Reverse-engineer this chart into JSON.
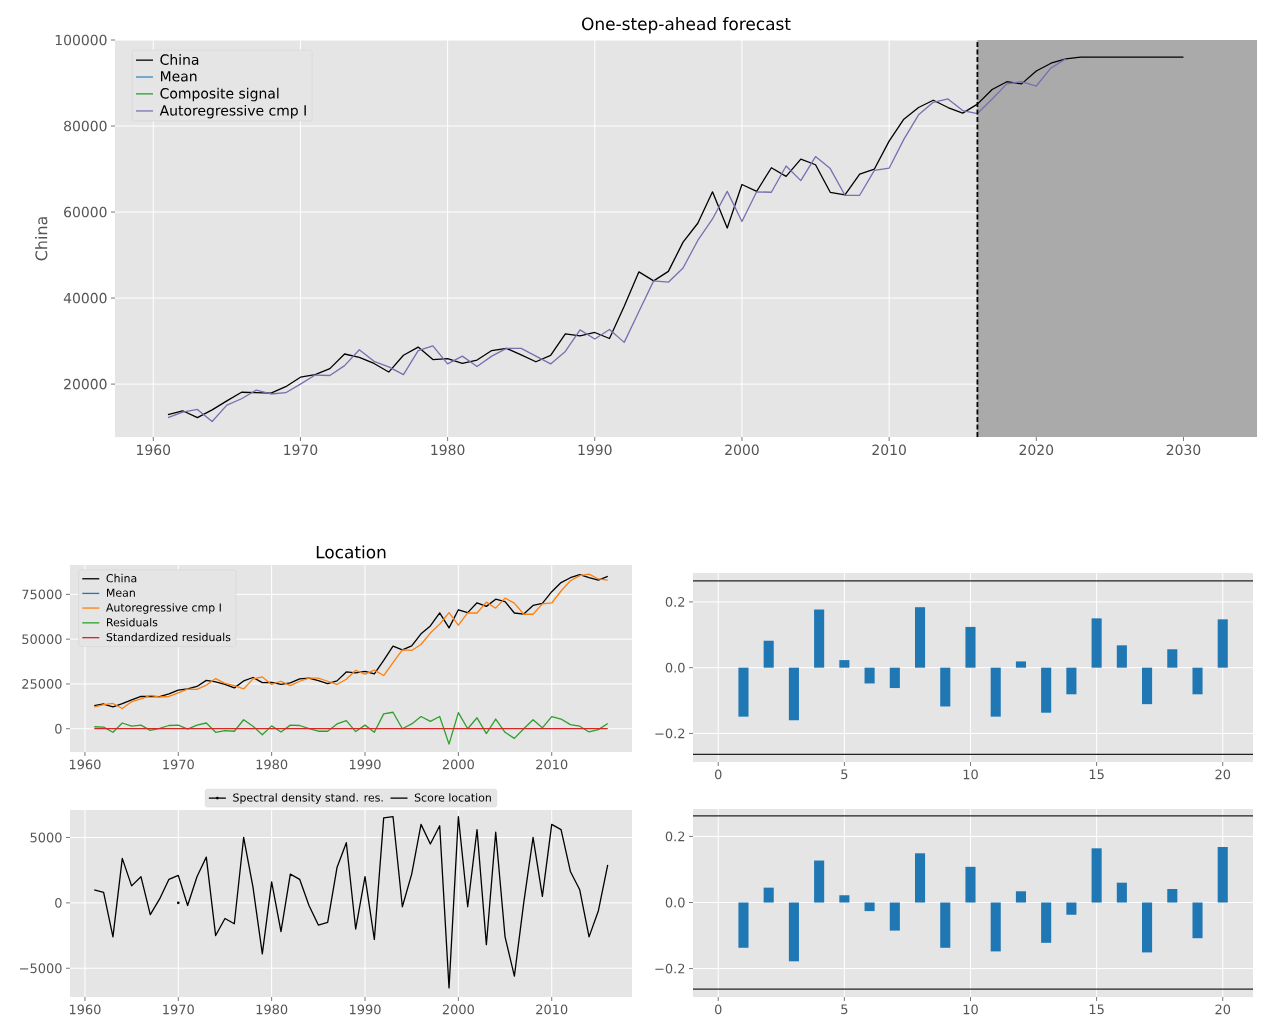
{
  "chart_data": [
    {
      "type": "line",
      "title": "One-step-ahead forecast",
      "ylabel": "China",
      "series": [
        {
          "name": "China",
          "color": "#000000",
          "x": [
            1961,
            1962,
            1963,
            1964,
            1965,
            1966,
            1967,
            1968,
            1969,
            1970,
            1971,
            1972,
            1973,
            1974,
            1975,
            1976,
            1977,
            1978,
            1979,
            1980,
            1981,
            1982,
            1983,
            1984,
            1985,
            1986,
            1987,
            1988,
            1989,
            1990,
            1991,
            1992,
            1993,
            1994,
            1995,
            1996,
            1997,
            1998,
            1999,
            2000,
            2001,
            2002,
            2003,
            2004,
            2005,
            2006,
            2007,
            2008,
            2009,
            2010,
            2011,
            2012,
            2013,
            2014,
            2015,
            2016,
            2017,
            2018,
            2019,
            2020,
            2021,
            2022,
            2023,
            2024,
            2025,
            2026,
            2027,
            2028,
            2029,
            2030
          ],
          "values": [
            12900,
            13800,
            12200,
            14000,
            16100,
            18100,
            18000,
            17900,
            19400,
            21600,
            22200,
            23600,
            27000,
            26200,
            24800,
            22800,
            26700,
            28600,
            25700,
            25900,
            24800,
            25600,
            27800,
            28300,
            26800,
            25200,
            26700,
            31700,
            31200,
            32000,
            30600,
            38100,
            46100,
            44000,
            46200,
            53000,
            57400,
            64700,
            56300,
            66400,
            64800,
            70300,
            68300,
            72300,
            71000,
            64600,
            64000,
            68800,
            70000,
            76500,
            81600,
            84300,
            86000,
            84300,
            83000,
            85100,
            88500,
            90300,
            89800,
            92800,
            94600,
            95600,
            96000,
            96000,
            96000,
            96000,
            96000,
            96000,
            96000,
            96000
          ]
        },
        {
          "name": "Mean",
          "color": "#348abd"
        },
        {
          "name": "Composite signal",
          "color": "#2ca02c"
        },
        {
          "name": "Autoregressive cmp I",
          "color": "#7a6eb0",
          "x": [
            1961,
            1962,
            1963,
            1964,
            1965,
            1966,
            1967,
            1968,
            1969,
            1970,
            1971,
            1972,
            1973,
            1974,
            1975,
            1976,
            1977,
            1978,
            1979,
            1980,
            1981,
            1982,
            1983,
            1984,
            1985,
            1986,
            1987,
            1988,
            1989,
            1990,
            1991,
            1992,
            1993,
            1994,
            1995,
            1996,
            1997,
            1998,
            1999,
            2000,
            2001,
            2002,
            2003,
            2004,
            2005,
            2006,
            2007,
            2008,
            2009,
            2010,
            2011,
            2012,
            2013,
            2014,
            2015,
            2016,
            2017,
            2018,
            2019,
            2020,
            2021,
            2022
          ],
          "values": [
            12200,
            13500,
            14100,
            11300,
            15100,
            16600,
            18600,
            17700,
            18000,
            20000,
            22100,
            22000,
            24300,
            28000,
            25300,
            24000,
            22200,
            27800,
            28900,
            24700,
            26500,
            24100,
            26500,
            28300,
            28300,
            26500,
            24700,
            27600,
            32600,
            30500,
            32700,
            29700,
            36900,
            44000,
            43700,
            47000,
            53400,
            58400,
            64800,
            57800,
            64700,
            64600,
            70700,
            67300,
            72900,
            70100,
            63900,
            63900,
            69700,
            70200,
            76900,
            82600,
            85500,
            86300,
            83600,
            82900,
            86300,
            89800,
            90300,
            89300,
            93500,
            95600
          ]
        }
      ],
      "xlim": [
        1957.4,
        2035
      ],
      "ylim": [
        7700,
        100000
      ],
      "xticks": [
        1960,
        1970,
        1980,
        1990,
        2000,
        2010,
        2020,
        2030
      ],
      "yticks": [
        20000,
        40000,
        60000,
        80000,
        100000
      ],
      "ref_lines": [
        {
          "axis": "x",
          "value": 2016,
          "color": "#000000",
          "line_style": "dashed"
        }
      ],
      "bands": [
        {
          "axis": "x",
          "from": 2016,
          "to": 2035,
          "color": "#aaaaaa"
        }
      ],
      "grid": true,
      "legend": "top left"
    },
    {
      "type": "line",
      "title": "Location",
      "x": [
        1961,
        1962,
        1963,
        1964,
        1965,
        1966,
        1967,
        1968,
        1969,
        1970,
        1971,
        1972,
        1973,
        1974,
        1975,
        1976,
        1977,
        1978,
        1979,
        1980,
        1981,
        1982,
        1983,
        1984,
        1985,
        1986,
        1987,
        1988,
        1989,
        1990,
        1991,
        1992,
        1993,
        1994,
        1995,
        1996,
        1997,
        1998,
        1999,
        2000,
        2001,
        2002,
        2003,
        2004,
        2005,
        2006,
        2007,
        2008,
        2009,
        2010,
        2011,
        2012,
        2013,
        2014,
        2015,
        2016
      ],
      "series": [
        {
          "name": "China",
          "color": "#000000",
          "values": [
            12900,
            13800,
            12200,
            14000,
            16100,
            18100,
            18000,
            17900,
            19400,
            21600,
            22200,
            23600,
            27000,
            26200,
            24800,
            22800,
            26700,
            28600,
            25700,
            25900,
            24800,
            25600,
            27800,
            28300,
            26800,
            25200,
            26700,
            31700,
            31200,
            32000,
            30600,
            38100,
            46100,
            44000,
            46200,
            53000,
            57400,
            64700,
            56300,
            66400,
            64800,
            70300,
            68300,
            72300,
            71000,
            64600,
            64000,
            68800,
            70000,
            76500,
            81600,
            84300,
            86000,
            84300,
            83000,
            85100
          ]
        },
        {
          "name": "Mean",
          "color": "#1f77b4",
          "values": [
            null,
            null,
            null,
            null,
            null,
            null,
            null,
            null,
            null,
            null,
            null,
            null,
            null,
            null,
            null,
            null,
            null,
            null,
            null,
            null,
            null,
            null,
            null,
            null,
            null,
            null,
            null,
            null,
            null,
            null,
            null,
            null,
            null,
            null,
            null,
            null,
            null,
            null,
            null,
            null,
            null,
            null,
            null,
            null,
            null,
            null,
            null,
            null,
            null,
            null,
            null,
            null,
            null,
            null,
            null,
            null
          ]
        },
        {
          "name": "Autoregressive cmp I",
          "color": "#ff7f0e",
          "values": [
            12200,
            13500,
            14100,
            11300,
            15100,
            16600,
            18600,
            17700,
            18000,
            20000,
            22100,
            22000,
            24300,
            28000,
            25300,
            24000,
            22200,
            27800,
            28900,
            24700,
            26500,
            24100,
            26500,
            28300,
            28300,
            26500,
            24700,
            27600,
            32600,
            30500,
            32700,
            29700,
            36900,
            44000,
            43700,
            47000,
            53400,
            58400,
            64800,
            57800,
            64700,
            64600,
            70700,
            67300,
            72900,
            70100,
            63900,
            63900,
            69700,
            70200,
            76900,
            82600,
            85500,
            86300,
            83600,
            82900
          ]
        },
        {
          "name": "Residuals",
          "color": "#2ca02c",
          "values": [
            1100,
            900,
            -2000,
            3200,
            1400,
            2000,
            -900,
            200,
            1800,
            2000,
            -200,
            2000,
            3200,
            -2000,
            -1100,
            -1400,
            5000,
            1400,
            -3400,
            1600,
            -1800,
            2000,
            1800,
            0,
            -1400,
            -1400,
            2700,
            4500,
            -1600,
            2000,
            -2000,
            8300,
            9200,
            0,
            2700,
            6800,
            4100,
            6800,
            -8600,
            9000,
            0,
            6100,
            -2700,
            5400,
            -2000,
            -5400,
            0,
            5000,
            500,
            6800,
            5400,
            2300,
            1400,
            -1800,
            -500,
            2900
          ]
        },
        {
          "name": "Standardized residuals",
          "color": "#d62728",
          "values": [
            0,
            0,
            0,
            0,
            0,
            0,
            0,
            0,
            0,
            0,
            0,
            0,
            0,
            0,
            0,
            0,
            0,
            0,
            0,
            0,
            0,
            0,
            0,
            0,
            0,
            0,
            0,
            0,
            0,
            0,
            0,
            0,
            0,
            0,
            0,
            0,
            0,
            0,
            0,
            0,
            0,
            0,
            0,
            0,
            0,
            0,
            0,
            0,
            0,
            0,
            0,
            0,
            0,
            0,
            0,
            0
          ]
        }
      ],
      "xlim": [
        1958.4,
        2018.6
      ],
      "ylim": [
        -13000,
        91400
      ],
      "xticks": [
        1960,
        1970,
        1980,
        1990,
        2000,
        2010
      ],
      "yticks": [
        0,
        25000,
        50000,
        75000
      ],
      "grid": true,
      "legend": "top left"
    },
    {
      "type": "line",
      "x": [
        1961,
        1962,
        1963,
        1964,
        1965,
        1966,
        1967,
        1968,
        1969,
        1970,
        1971,
        1972,
        1973,
        1974,
        1975,
        1976,
        1977,
        1978,
        1979,
        1980,
        1981,
        1982,
        1983,
        1984,
        1985,
        1986,
        1987,
        1988,
        1989,
        1990,
        1991,
        1992,
        1993,
        1994,
        1995,
        1996,
        1997,
        1998,
        1999,
        2000,
        2001,
        2002,
        2003,
        2004,
        2005,
        2006,
        2007,
        2008,
        2009,
        2010,
        2011,
        2012,
        2013,
        2014,
        2015,
        2016
      ],
      "series": [
        {
          "name": "Spectral density stand. res.",
          "color": "#000000",
          "x": [
            1970
          ],
          "values": [
            0
          ],
          "marker": "circle"
        },
        {
          "name": "Score location",
          "color": "#000000",
          "values": [
            1000,
            800,
            -2600,
            3400,
            1300,
            2000,
            -900,
            300,
            1800,
            2100,
            -200,
            2000,
            3500,
            -2500,
            -1200,
            -1600,
            5000,
            1200,
            -3900,
            1600,
            -2200,
            2200,
            1800,
            -200,
            -1700,
            -1500,
            2700,
            4600,
            -2000,
            2000,
            -2800,
            6500,
            6600,
            -300,
            2200,
            6000,
            4500,
            5900,
            -6500,
            6600,
            -300,
            5600,
            -3200,
            5400,
            -2600,
            -5600,
            0,
            5000,
            500,
            6000,
            5600,
            2400,
            1000,
            -2600,
            -600,
            2900
          ]
        }
      ],
      "xlim": [
        1958.4,
        2018.6
      ],
      "ylim": [
        -7200,
        7100
      ],
      "xticks": [
        1960,
        1970,
        1980,
        1990,
        2000,
        2010
      ],
      "yticks": [
        {
          "value": -5000,
          "label": "−5000"
        },
        0,
        5000
      ],
      "grid": true,
      "legend": "top"
    },
    {
      "type": "bar",
      "x": [
        1,
        2,
        3,
        4,
        5,
        6,
        7,
        8,
        9,
        10,
        11,
        12,
        13,
        14,
        15,
        16,
        17,
        18,
        19,
        20
      ],
      "series": [
        {
          "color": "#1f77b4",
          "values": [
            -0.149,
            0.082,
            -0.16,
            0.177,
            0.023,
            -0.048,
            -0.062,
            0.184,
            -0.118,
            0.124,
            -0.149,
            0.019,
            -0.137,
            -0.081,
            0.15,
            0.068,
            -0.111,
            0.056,
            -0.081,
            0.147
          ]
        }
      ],
      "xlim": [
        -1,
        21.2
      ],
      "ylim": [
        -0.287,
        0.288
      ],
      "xticks": [
        0,
        5,
        10,
        15,
        20
      ],
      "yticks": [
        {
          "value": -0.2,
          "label": "−0.2"
        },
        {
          "value": 0,
          "label": "0.0"
        },
        0.2
      ],
      "ref_lines": [
        {
          "axis": "y",
          "value": 0.264,
          "color": "#222222"
        },
        {
          "axis": "y",
          "value": -0.264,
          "color": "#222222"
        }
      ],
      "grid": true
    },
    {
      "type": "bar",
      "x": [
        1,
        2,
        3,
        4,
        5,
        6,
        7,
        8,
        9,
        10,
        11,
        12,
        13,
        14,
        15,
        16,
        17,
        18,
        19,
        20
      ],
      "series": [
        {
          "color": "#1f77b4",
          "values": [
            -0.137,
            0.045,
            -0.178,
            0.127,
            0.022,
            -0.026,
            -0.085,
            0.149,
            -0.137,
            0.108,
            -0.148,
            0.034,
            -0.122,
            -0.037,
            0.164,
            0.06,
            -0.151,
            0.041,
            -0.108,
            0.168
          ]
        }
      ],
      "xlim": [
        -1,
        21.2
      ],
      "ylim": [
        -0.286,
        0.283
      ],
      "xticks": [
        0,
        5,
        10,
        15,
        20
      ],
      "yticks": [
        {
          "value": -0.2,
          "label": "−0.2"
        },
        {
          "value": 0,
          "label": "0.0"
        },
        0.2
      ],
      "ref_lines": [
        {
          "axis": "y",
          "value": 0.262,
          "color": "#222222"
        },
        {
          "axis": "y",
          "value": -0.262,
          "color": "#222222"
        }
      ],
      "grid": true
    }
  ]
}
